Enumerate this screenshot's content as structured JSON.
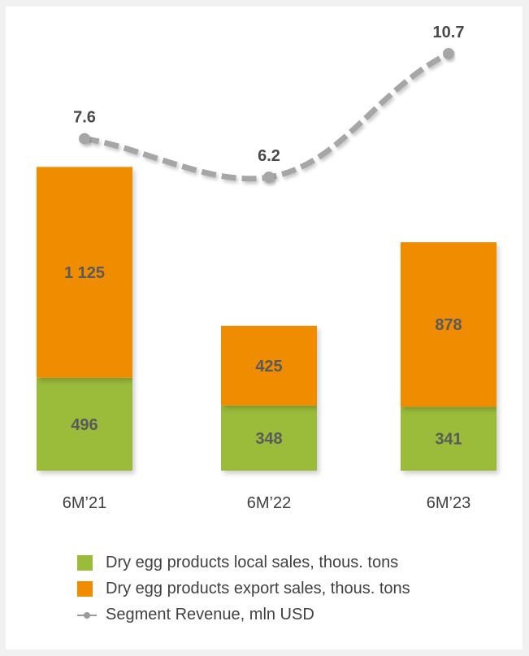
{
  "chart_data": {
    "type": "bar",
    "stacked": true,
    "categories": [
      "6M’21",
      "6M’22",
      "6M’23"
    ],
    "series": [
      {
        "name": "Dry egg products local sales, thous. tons",
        "type": "bar",
        "values": [
          496,
          348,
          341
        ],
        "labels": [
          "496",
          "348",
          "341"
        ],
        "color": "#9bbb3b"
      },
      {
        "name": "Dry egg products export sales, thous. tons",
        "type": "bar",
        "values": [
          1125,
          425,
          878
        ],
        "labels": [
          "1 125",
          "425",
          "878"
        ],
        "color": "#f08c00"
      },
      {
        "name": "Segment Revenue, mln USD",
        "type": "line",
        "style": "dashed",
        "values": [
          7.6,
          6.2,
          10.7
        ],
        "labels": [
          "7.6",
          "6.2",
          "10.7"
        ],
        "color": "#a6a6a6"
      }
    ],
    "grid": false,
    "legend_position": "bottom"
  }
}
